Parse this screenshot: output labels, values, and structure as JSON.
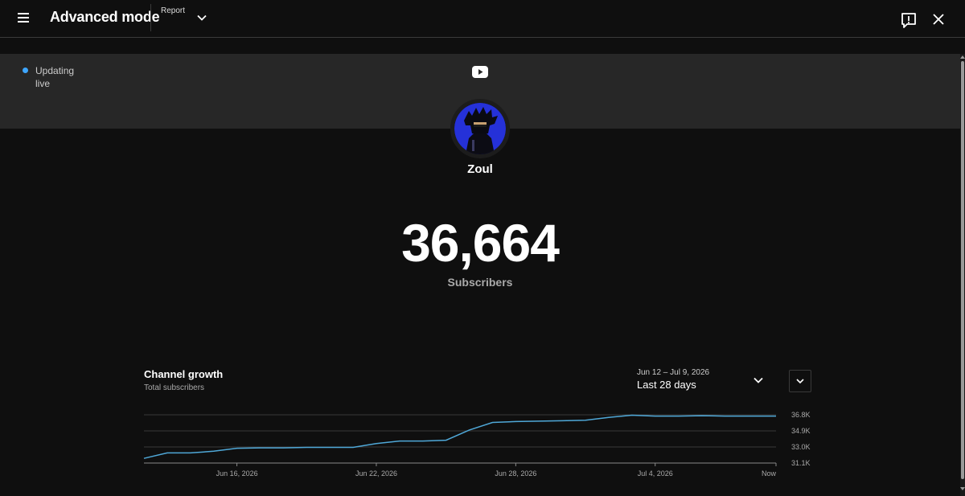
{
  "header": {
    "title": "Advanced mode",
    "report_label": "Report",
    "icons": [
      "menu-icon",
      "chevron-down-icon",
      "feedback-icon",
      "close-icon"
    ]
  },
  "banner": {
    "status_line1": "Updating",
    "status_line2": "live",
    "platform_icon": "youtube-icon",
    "accent": "#3ea6ff"
  },
  "channel": {
    "name": "Zoul",
    "subscriber_count": "36,664",
    "subscriber_label": "Subscribers"
  },
  "growth": {
    "title": "Channel growth",
    "subtitle": "Total subscribers",
    "date_range": "Jun 12 – Jul 9, 2026",
    "range_label": "Last 28 days"
  },
  "chart_data": {
    "type": "line",
    "title": "Channel growth",
    "subtitle": "Total subscribers",
    "x_tick_labels": [
      "Jun 16, 2026",
      "Jun 22, 2026",
      "Jun 28, 2026",
      "Jul 4, 2026",
      "Now"
    ],
    "x_tick_days": [
      4,
      10,
      16,
      22,
      27.2
    ],
    "y_tick_labels": [
      "36.8K",
      "34.9K",
      "33.0K",
      "31.1K"
    ],
    "y_tick_values": [
      36.8,
      34.9,
      33.0,
      31.1
    ],
    "ylim": [
      31.1,
      36.8
    ],
    "grid": true,
    "line_color": "#4fa8d8",
    "series": [
      {
        "x": [
          0,
          1,
          2,
          3,
          4,
          5,
          6,
          7,
          8,
          9,
          10,
          11,
          12,
          13,
          14,
          15,
          16,
          17,
          18,
          19,
          20,
          21,
          22,
          23,
          24,
          25,
          26,
          27
        ],
        "y": [
          31.65,
          32.3,
          32.3,
          32.5,
          32.85,
          32.9,
          32.9,
          32.95,
          32.95,
          32.95,
          33.4,
          33.7,
          33.7,
          33.8,
          35.0,
          35.9,
          36.0,
          36.05,
          36.1,
          36.15,
          36.5,
          36.75,
          36.65,
          36.65,
          36.7,
          36.65,
          36.65,
          36.65
        ]
      }
    ]
  }
}
